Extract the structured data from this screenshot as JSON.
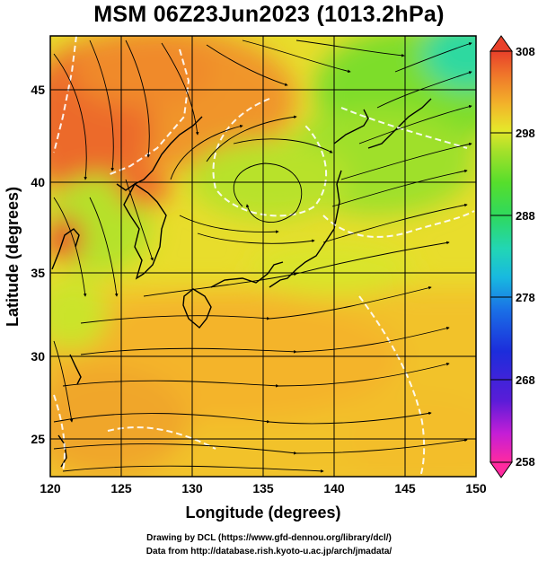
{
  "title": "MSM 06Z23Jun2023 (1013.2hPa)",
  "map": {
    "x_axis_label": "Longitude (degrees)",
    "y_axis_label": "Latitude  (degrees)",
    "x_range": [
      120,
      150
    ],
    "y_range": [
      22.5,
      48
    ],
    "x_ticks": [
      "120",
      "125",
      "130",
      "135",
      "140",
      "145",
      "150"
    ],
    "y_ticks": [
      "25",
      "30",
      "35",
      "40",
      "45"
    ],
    "field": "temperature (K)",
    "overlays": [
      "streamlines",
      "coastlines",
      "white contours"
    ]
  },
  "colorbar": {
    "range": [
      258,
      308
    ],
    "tick_labels": [
      "308",
      "298",
      "288",
      "278",
      "268",
      "258"
    ],
    "colors": [
      "#ff2aa0",
      "#c41ed6",
      "#5a1cd8",
      "#1c2ddb",
      "#1a6fe6",
      "#18b9e0",
      "#22d6b4",
      "#2fd95d",
      "#56de2c",
      "#a8e12a",
      "#e6e62a",
      "#f2b42a",
      "#f0782a",
      "#e8402a"
    ]
  },
  "credits": {
    "line1": "Drawing by DCL (https://www.gfd-dennou.org/library/dcl/)",
    "line2": "Data from http://database.rish.kyoto-u.ac.jp/arch/jmadata/"
  }
}
